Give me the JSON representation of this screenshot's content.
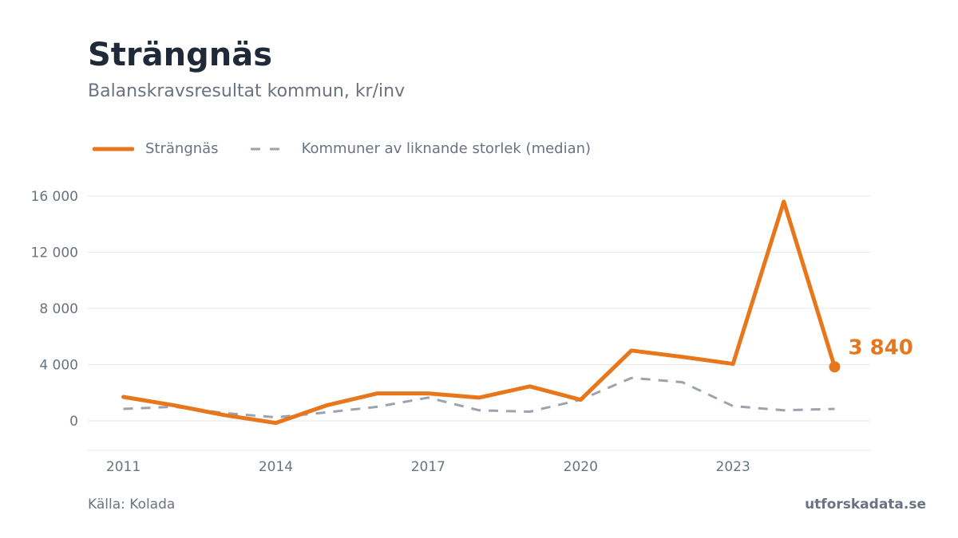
{
  "header": {
    "title": "Strängnäs",
    "subtitle": "Balanskravsresultat kommun, kr/inv"
  },
  "footer": {
    "source": "Källa: Kolada",
    "brand": "utforskadata.se"
  },
  "colors": {
    "primary": "#e8761b",
    "median": "#9ca3af",
    "grid": "#e5e7eb",
    "text": "#6b7280"
  },
  "chart_data": {
    "type": "line",
    "x": [
      2011,
      2012,
      2013,
      2014,
      2015,
      2016,
      2017,
      2018,
      2019,
      2020,
      2021,
      2022,
      2023,
      2024,
      2025
    ],
    "xticks": [
      2011,
      2014,
      2017,
      2020,
      2023
    ],
    "xtick_labels": [
      "2011",
      "2014",
      "2017",
      "2020",
      "2023"
    ],
    "yticks": [
      0,
      4000,
      8000,
      12000,
      16000
    ],
    "ytick_labels": [
      "0",
      "4 000",
      "8 000",
      "12 000",
      "16 000"
    ],
    "xlim": [
      2010.3,
      2025.7
    ],
    "ylim": [
      -2100,
      16900
    ],
    "grid": true,
    "legend_position": "top-left",
    "series": [
      {
        "name": "Strängnäs",
        "style": "solid",
        "values": [
          1700,
          1100,
          400,
          -150,
          1100,
          1950,
          1950,
          1650,
          2450,
          1500,
          5000,
          4550,
          4050,
          15600,
          3840
        ]
      },
      {
        "name": "Kommuner av liknande storlek (median)",
        "style": "dashed",
        "values": [
          850,
          1000,
          550,
          250,
          600,
          1000,
          1650,
          750,
          650,
          1500,
          3050,
          2750,
          1050,
          750,
          850
        ]
      }
    ],
    "end_label": "3 840"
  }
}
